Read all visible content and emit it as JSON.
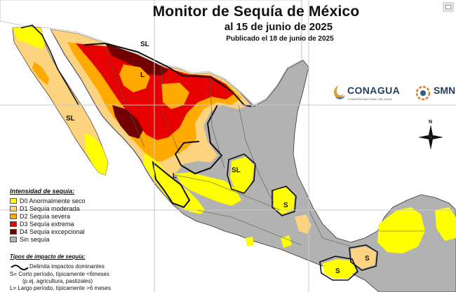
{
  "title": "Monitor de Sequía de México",
  "subtitle": "al 15 de junio de 2025",
  "published": "Publicado el 18 de junio de 2025",
  "logos": {
    "conagua": "CONAGUA",
    "conagua_sub": "COMISIÓN NACIONAL DEL AGUA",
    "smn": "SMN"
  },
  "legend": {
    "heading": "Intensidad de sequía:",
    "items": [
      {
        "label": "D0 Anormalmente seco",
        "color": "#ffff00"
      },
      {
        "label": "D1 Sequía moderada",
        "color": "#fcd37f"
      },
      {
        "label": "D2 Sequía severa",
        "color": "#ffaa00"
      },
      {
        "label": "D3 Sequía extrema",
        "color": "#e60000"
      },
      {
        "label": "D4 Sequía excepcional",
        "color": "#730000"
      },
      {
        "label": "Sin sequía",
        "color": "#b2b2b2"
      }
    ]
  },
  "impact_legend": {
    "heading": "Tipos de impacto de sequía:",
    "delimit": "Delimita impactos dominantes",
    "short_term": "S= Corto período, típicamente <6meses",
    "short_term_eg": "(p.ej. agricultura, pastizales)",
    "long_term": "L= Largo período, típicamente >6 meses"
  },
  "region_labels": {
    "sl_northeast": "SL",
    "l_north": "L",
    "sl_baja": "SL",
    "l_west": "L",
    "sl_center": "SL",
    "s_veracruz": "S",
    "s_south": "S",
    "s_yucatan": "S"
  },
  "icons": {
    "compass": "compass-rose-icon",
    "conagua_logo": "conagua-logo-icon",
    "smn_logo": "smn-logo-icon",
    "expand": "expand-icon"
  }
}
